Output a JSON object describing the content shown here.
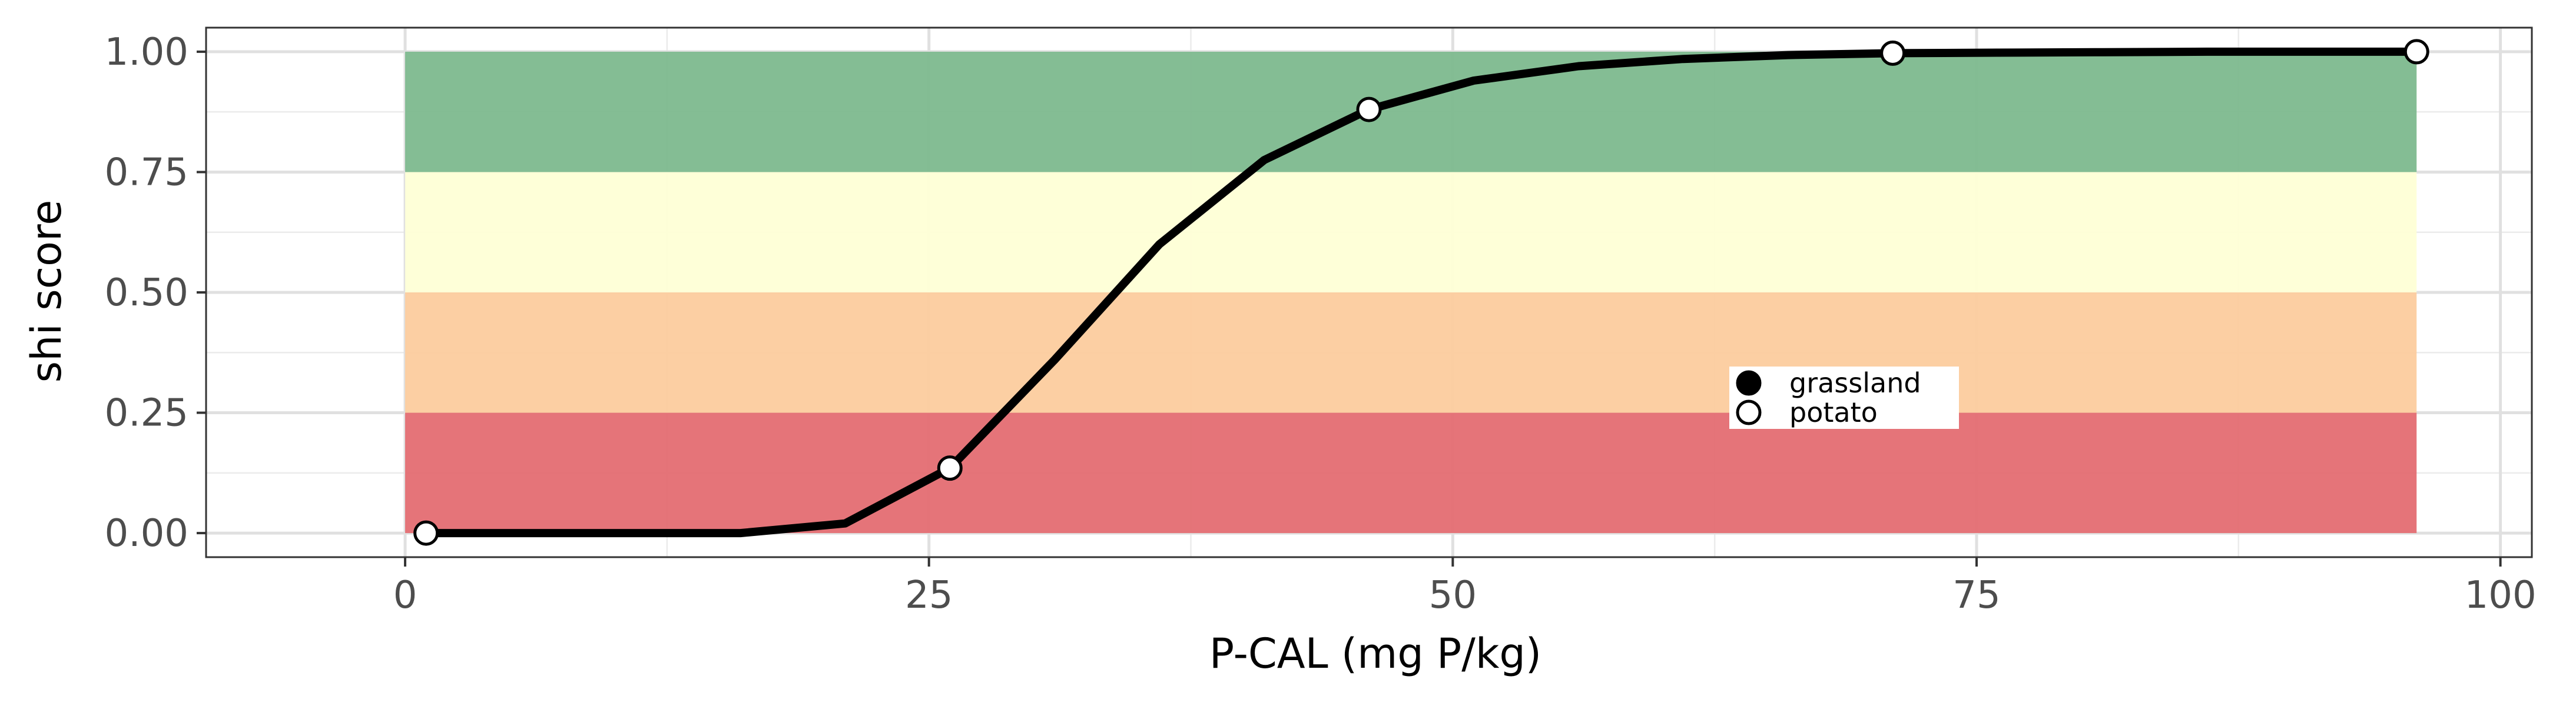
{
  "chart_data": {
    "type": "line",
    "title": "",
    "xlabel": "P-CAL (mg P/kg)",
    "ylabel": "shi score",
    "xlim": [
      -9.5,
      101.5
    ],
    "ylim": [
      -0.05,
      1.05
    ],
    "x_ticks": [
      0,
      25,
      50,
      75,
      100
    ],
    "y_ticks": [
      0.0,
      0.25,
      0.5,
      0.75,
      1.0
    ],
    "x_tick_labels": [
      "0",
      "25",
      "50",
      "75",
      "100"
    ],
    "y_tick_labels": [
      "0.00",
      "0.25",
      "0.50",
      "0.75",
      "1.00"
    ],
    "grid": true,
    "bands": [
      {
        "ymin": 0.0,
        "ymax": 0.25,
        "xmin": 0,
        "xmax": 96,
        "color": "#e46d72"
      },
      {
        "ymin": 0.25,
        "ymax": 0.5,
        "xmin": 0,
        "xmax": 96,
        "color": "#fccc9e"
      },
      {
        "ymin": 0.5,
        "ymax": 0.75,
        "xmin": 0,
        "xmax": 96,
        "color": "#feffd6"
      },
      {
        "ymin": 0.75,
        "ymax": 1.0,
        "xmin": 0,
        "xmax": 96,
        "color": "#7db98e"
      }
    ],
    "curve": {
      "color": "#000000",
      "x": [
        1,
        6,
        11,
        16,
        21,
        26,
        31,
        36,
        41,
        46,
        51,
        56,
        61,
        66,
        71,
        76,
        81,
        86,
        91,
        96
      ],
      "y": [
        0.0,
        0.0,
        0.0,
        0.0,
        0.02,
        0.135,
        0.36,
        0.6,
        0.775,
        0.88,
        0.94,
        0.97,
        0.985,
        0.993,
        0.997,
        0.998,
        0.999,
        1.0,
        1.0,
        1.0
      ]
    },
    "series": [
      {
        "name": "grassland",
        "marker": "filled-circle",
        "color": "#000000",
        "x": [],
        "y": []
      },
      {
        "name": "potato",
        "marker": "open-circle",
        "color": "#ffffff",
        "x": [
          1,
          26,
          46,
          71,
          96
        ],
        "y": [
          0.0,
          0.135,
          0.88,
          0.997,
          1.0
        ]
      }
    ],
    "legend": {
      "placement": "inside-center-right",
      "entries": [
        {
          "label": "grassland",
          "marker": "filled-circle"
        },
        {
          "label": "potato",
          "marker": "open-circle"
        }
      ]
    }
  }
}
